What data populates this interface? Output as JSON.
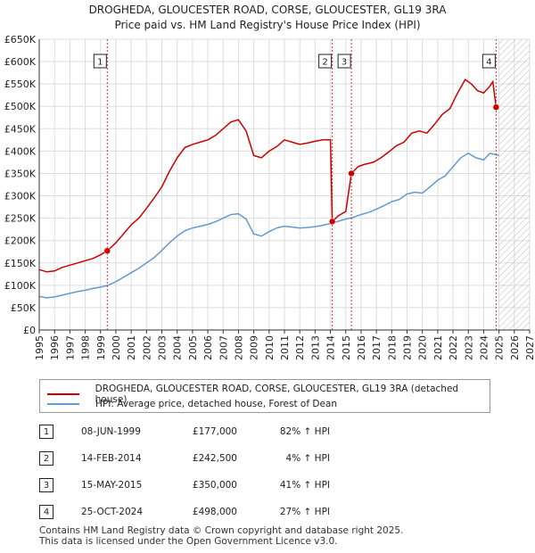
{
  "title_line1": "DROGHEDA, GLOUCESTER ROAD, CORSE, GLOUCESTER, GL19 3RA",
  "title_line2": "Price paid vs. HM Land Registry's House Price Index (HPI)",
  "colors": {
    "property": "#cc0000",
    "hpi": "#6699cc",
    "grid": "#dddddd",
    "marker_line": "#cc0000"
  },
  "chart_data": {
    "type": "line",
    "title": "Price paid vs. HM Land Registry's House Price Index (HPI)",
    "xlabel": "",
    "ylabel": "",
    "xlim": [
      1995,
      2027
    ],
    "ylim": [
      0,
      650000
    ],
    "x_ticks": [
      "1995",
      "1996",
      "1997",
      "1998",
      "1999",
      "2000",
      "2001",
      "2002",
      "2003",
      "2004",
      "2005",
      "2006",
      "2007",
      "2008",
      "2009",
      "2010",
      "2011",
      "2012",
      "2013",
      "2014",
      "2015",
      "2016",
      "2017",
      "2018",
      "2019",
      "2020",
      "2021",
      "2022",
      "2023",
      "2024",
      "2025",
      "2026",
      "2027"
    ],
    "y_ticks": [
      {
        "value": 0,
        "label": "£0"
      },
      {
        "value": 50000,
        "label": "£50K"
      },
      {
        "value": 100000,
        "label": "£100K"
      },
      {
        "value": 150000,
        "label": "£150K"
      },
      {
        "value": 200000,
        "label": "£200K"
      },
      {
        "value": 250000,
        "label": "£250K"
      },
      {
        "value": 300000,
        "label": "£300K"
      },
      {
        "value": 350000,
        "label": "£350K"
      },
      {
        "value": 400000,
        "label": "£400K"
      },
      {
        "value": 450000,
        "label": "£450K"
      },
      {
        "value": 500000,
        "label": "£500K"
      },
      {
        "value": 550000,
        "label": "£550K"
      },
      {
        "value": 600000,
        "label": "£600K"
      },
      {
        "value": 650000,
        "label": "£650K"
      }
    ],
    "forecast_start": 2025.0,
    "series": [
      {
        "name": "DROGHEDA, GLOUCESTER ROAD, CORSE, GLOUCESTER, GL19 3RA (detached house)",
        "color": "#cc0000",
        "points": [
          [
            1995.0,
            135000
          ],
          [
            1995.5,
            130000
          ],
          [
            1996.0,
            132000
          ],
          [
            1996.5,
            140000
          ],
          [
            1997.0,
            145000
          ],
          [
            1997.5,
            150000
          ],
          [
            1998.0,
            155000
          ],
          [
            1998.5,
            160000
          ],
          [
            1999.0,
            168000
          ],
          [
            1999.44,
            177000
          ],
          [
            2000.0,
            195000
          ],
          [
            2000.5,
            215000
          ],
          [
            2001.0,
            235000
          ],
          [
            2001.5,
            250000
          ],
          [
            2002.0,
            272000
          ],
          [
            2002.5,
            295000
          ],
          [
            2003.0,
            320000
          ],
          [
            2003.5,
            355000
          ],
          [
            2004.0,
            385000
          ],
          [
            2004.5,
            408000
          ],
          [
            2005.0,
            415000
          ],
          [
            2005.5,
            420000
          ],
          [
            2006.0,
            425000
          ],
          [
            2006.5,
            435000
          ],
          [
            2007.0,
            450000
          ],
          [
            2007.5,
            465000
          ],
          [
            2008.0,
            470000
          ],
          [
            2008.5,
            445000
          ],
          [
            2009.0,
            390000
          ],
          [
            2009.5,
            385000
          ],
          [
            2010.0,
            400000
          ],
          [
            2010.5,
            410000
          ],
          [
            2011.0,
            425000
          ],
          [
            2011.5,
            420000
          ],
          [
            2012.0,
            415000
          ],
          [
            2012.5,
            418000
          ],
          [
            2013.0,
            422000
          ],
          [
            2013.5,
            425000
          ],
          [
            2014.0,
            425000
          ],
          [
            2014.12,
            242500
          ],
          [
            2014.5,
            255000
          ],
          [
            2015.0,
            265000
          ],
          [
            2015.37,
            350000
          ],
          [
            2015.8,
            365000
          ],
          [
            2016.2,
            370000
          ],
          [
            2016.8,
            375000
          ],
          [
            2017.3,
            385000
          ],
          [
            2017.8,
            398000
          ],
          [
            2018.3,
            412000
          ],
          [
            2018.8,
            420000
          ],
          [
            2019.3,
            440000
          ],
          [
            2019.8,
            445000
          ],
          [
            2020.3,
            440000
          ],
          [
            2020.8,
            460000
          ],
          [
            2021.3,
            482000
          ],
          [
            2021.8,
            495000
          ],
          [
            2022.3,
            530000
          ],
          [
            2022.8,
            560000
          ],
          [
            2023.2,
            550000
          ],
          [
            2023.6,
            535000
          ],
          [
            2024.0,
            530000
          ],
          [
            2024.4,
            545000
          ],
          [
            2024.6,
            555000
          ],
          [
            2024.81,
            498000
          ],
          [
            2024.95,
            495000
          ]
        ]
      },
      {
        "name": "HPI: Average price, detached house, Forest of Dean",
        "color": "#6699cc",
        "points": [
          [
            1995.0,
            75000
          ],
          [
            1995.5,
            72000
          ],
          [
            1996.0,
            74000
          ],
          [
            1996.5,
            78000
          ],
          [
            1997.0,
            82000
          ],
          [
            1997.5,
            86000
          ],
          [
            1998.0,
            89000
          ],
          [
            1998.5,
            93000
          ],
          [
            1999.0,
            96000
          ],
          [
            1999.5,
            100000
          ],
          [
            2000.0,
            108000
          ],
          [
            2000.5,
            118000
          ],
          [
            2001.0,
            128000
          ],
          [
            2001.5,
            138000
          ],
          [
            2002.0,
            150000
          ],
          [
            2002.5,
            162000
          ],
          [
            2003.0,
            178000
          ],
          [
            2003.5,
            195000
          ],
          [
            2004.0,
            210000
          ],
          [
            2004.5,
            222000
          ],
          [
            2005.0,
            228000
          ],
          [
            2005.5,
            232000
          ],
          [
            2006.0,
            236000
          ],
          [
            2006.5,
            242000
          ],
          [
            2007.0,
            250000
          ],
          [
            2007.5,
            258000
          ],
          [
            2008.0,
            260000
          ],
          [
            2008.5,
            248000
          ],
          [
            2009.0,
            215000
          ],
          [
            2009.5,
            210000
          ],
          [
            2010.0,
            220000
          ],
          [
            2010.5,
            228000
          ],
          [
            2011.0,
            232000
          ],
          [
            2011.5,
            230000
          ],
          [
            2012.0,
            228000
          ],
          [
            2012.5,
            229000
          ],
          [
            2013.0,
            231000
          ],
          [
            2013.5,
            234000
          ],
          [
            2014.0,
            238000
          ],
          [
            2014.5,
            243000
          ],
          [
            2015.0,
            248000
          ],
          [
            2015.5,
            252000
          ],
          [
            2016.0,
            258000
          ],
          [
            2016.5,
            263000
          ],
          [
            2017.0,
            270000
          ],
          [
            2017.5,
            278000
          ],
          [
            2018.0,
            287000
          ],
          [
            2018.5,
            292000
          ],
          [
            2019.0,
            304000
          ],
          [
            2019.5,
            308000
          ],
          [
            2020.0,
            306000
          ],
          [
            2020.5,
            320000
          ],
          [
            2021.0,
            335000
          ],
          [
            2021.5,
            345000
          ],
          [
            2022.0,
            365000
          ],
          [
            2022.5,
            385000
          ],
          [
            2023.0,
            395000
          ],
          [
            2023.5,
            385000
          ],
          [
            2024.0,
            380000
          ],
          [
            2024.4,
            395000
          ],
          [
            2024.81,
            392000
          ],
          [
            2025.0,
            390000
          ]
        ]
      }
    ],
    "transactions": [
      {
        "num": "1",
        "x": 1999.44,
        "price": 177000
      },
      {
        "num": "2",
        "x": 2014.12,
        "price": 242500
      },
      {
        "num": "3",
        "x": 2015.37,
        "price": 350000
      },
      {
        "num": "4",
        "x": 2024.81,
        "price": 498000
      }
    ]
  },
  "legend": {
    "property": "DROGHEDA, GLOUCESTER ROAD, CORSE, GLOUCESTER, GL19 3RA (detached house)",
    "hpi": "HPI: Average price, detached house, Forest of Dean"
  },
  "table": [
    {
      "num": "1",
      "date": "08-JUN-1999",
      "price": "£177,000",
      "hpi": "82% ↑ HPI"
    },
    {
      "num": "2",
      "date": "14-FEB-2014",
      "price": "£242,500",
      "hpi": "4% ↑ HPI"
    },
    {
      "num": "3",
      "date": "15-MAY-2015",
      "price": "£350,000",
      "hpi": "41% ↑ HPI"
    },
    {
      "num": "4",
      "date": "25-OCT-2024",
      "price": "£498,000",
      "hpi": "27% ↑ HPI"
    }
  ],
  "footer_line1": "Contains HM Land Registry data © Crown copyright and database right 2025.",
  "footer_line2": "This data is licensed under the Open Government Licence v3.0."
}
